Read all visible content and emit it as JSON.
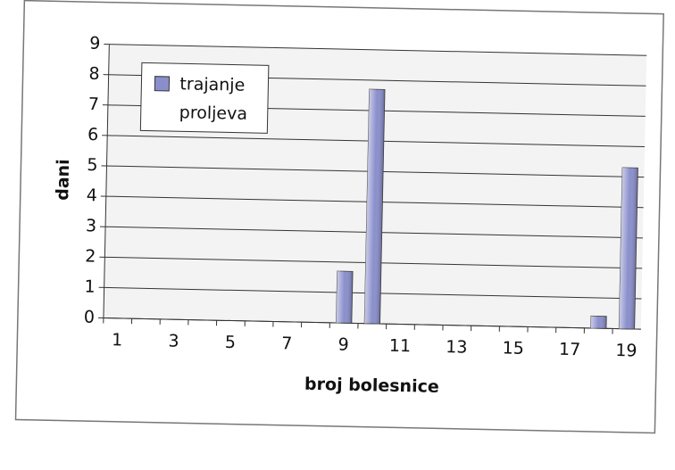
{
  "chart_data": {
    "type": "bar",
    "x_label": "broj bolesnice",
    "y_label": "dani",
    "categories": [
      "1",
      null,
      "3",
      null,
      "5",
      null,
      "7",
      null,
      "9",
      null,
      "11",
      null,
      "13",
      null,
      "15",
      null,
      "17",
      null,
      "19"
    ],
    "series": [
      {
        "name": "trajanje proljeva",
        "color": "#8a8fcc",
        "values": [
          0,
          0,
          0,
          0,
          0,
          0,
          0,
          0,
          1.7,
          7.7,
          0,
          0,
          0,
          0,
          0,
          0,
          0,
          0.4,
          5.3
        ]
      }
    ],
    "ylim": [
      0,
      9
    ],
    "yticks": [
      0,
      1,
      2,
      3,
      4,
      5,
      6,
      7,
      8,
      9
    ],
    "grid": true,
    "legend": "upper left"
  }
}
